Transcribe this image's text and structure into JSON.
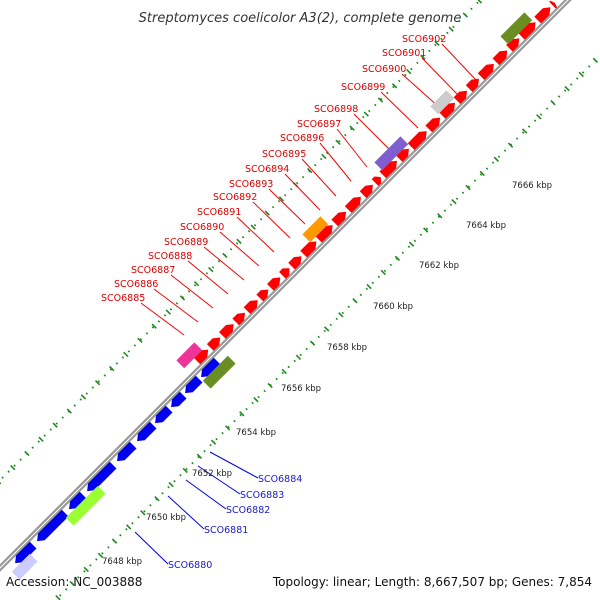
{
  "title": "Streptomyces coelicolor A3(2), complete genome",
  "accession": "Accession: NC_003888",
  "summary": "Topology: linear; Length: 8,667,507 bp; Genes: 7,854",
  "colors": {
    "forward": "#ff0000",
    "reverse": "#0000ee",
    "olive": "#6b8e23",
    "lime": "#99ff33",
    "orange": "#ff9900",
    "purple": "#7f5fd0",
    "gray": "#cccccc",
    "magenta": "#ee3399",
    "lavender": "#ccccff",
    "axis": "#999999",
    "tick": "#228822"
  },
  "ticks": [
    "7648 kbp",
    "7650 kbp",
    "7652 kbp",
    "7654 kbp",
    "7656 kbp",
    "7658 kbp",
    "7660 kbp",
    "7662 kbp",
    "7664 kbp",
    "7666 kbp"
  ],
  "top_genes": [
    "SCO6885",
    "SCO6886",
    "SCO6887",
    "SCO6888",
    "SCO6889",
    "SCO6890",
    "SCO6891",
    "SCO6892",
    "SCO6893",
    "SCO6894",
    "SCO6895",
    "SCO6896",
    "SCO6897",
    "SCO6898",
    "SCO6899",
    "SCO6900",
    "SCO6901",
    "SCO6902"
  ],
  "bottom_genes": [
    "SCO6880",
    "SCO6881",
    "SCO6882",
    "SCO6883",
    "SCO6884"
  ]
}
